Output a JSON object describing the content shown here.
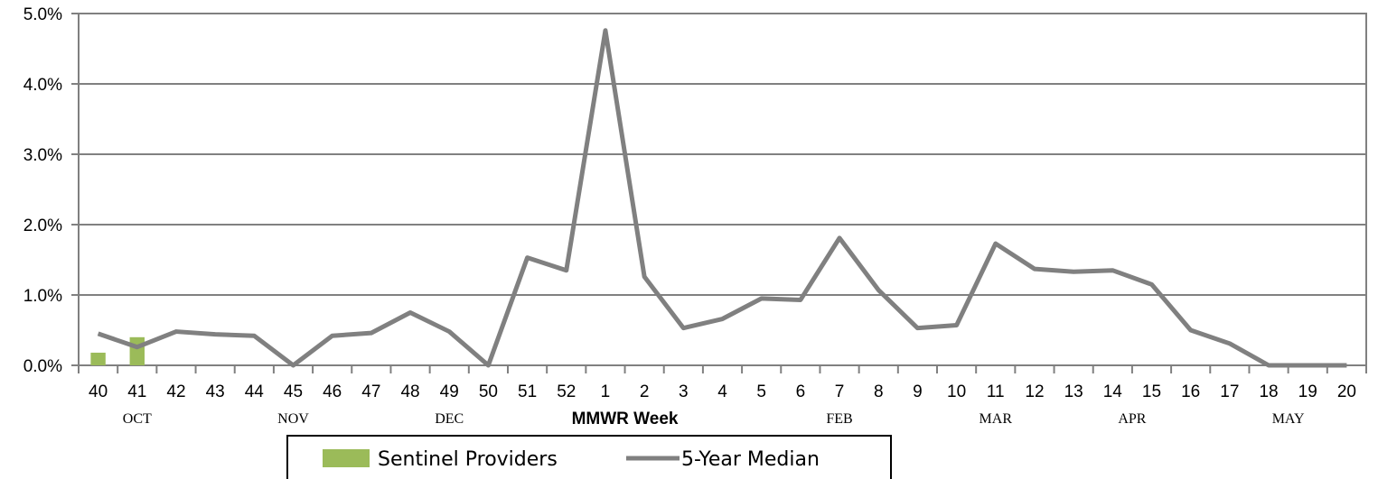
{
  "chart_data": {
    "type": "bar",
    "xlabel": "MMWR Week",
    "ylabel": "",
    "ylim": [
      0,
      5
    ],
    "y_ticks": [
      "0.0%",
      "1.0%",
      "2.0%",
      "3.0%",
      "4.0%",
      "5.0%"
    ],
    "grid": "horizontal",
    "legend_placement": "bottom",
    "categories": [
      "40",
      "41",
      "42",
      "43",
      "44",
      "45",
      "46",
      "47",
      "48",
      "49",
      "50",
      "51",
      "52",
      "1",
      "2",
      "3",
      "4",
      "5",
      "6",
      "7",
      "8",
      "9",
      "10",
      "11",
      "12",
      "13",
      "14",
      "15",
      "16",
      "17",
      "18",
      "19",
      "20"
    ],
    "months": [
      {
        "label": "OCT",
        "at_week": "41"
      },
      {
        "label": "NOV",
        "at_week": "45"
      },
      {
        "label": "DEC",
        "at_week": "49"
      },
      {
        "label": "FEB",
        "at_week": "7"
      },
      {
        "label": "MAR",
        "at_week": "11"
      },
      {
        "label": "APR",
        "at_week": "14.5"
      },
      {
        "label": "MAY",
        "at_week": "18.5"
      }
    ],
    "series": [
      {
        "name": "Sentinel Providers",
        "type": "bar",
        "color": "#9bbb59",
        "values": [
          0.18,
          0.4,
          null,
          null,
          null,
          null,
          null,
          null,
          null,
          null,
          null,
          null,
          null,
          null,
          null,
          null,
          null,
          null,
          null,
          null,
          null,
          null,
          null,
          null,
          null,
          null,
          null,
          null,
          null,
          null,
          null,
          null,
          null
        ]
      },
      {
        "name": "5-Year Median",
        "type": "line",
        "color": "#808080",
        "values": [
          0.45,
          0.26,
          0.48,
          0.44,
          0.42,
          0.0,
          0.42,
          0.46,
          0.75,
          0.48,
          0.0,
          1.53,
          1.35,
          4.76,
          1.26,
          0.53,
          0.66,
          0.95,
          0.93,
          1.81,
          1.07,
          0.53,
          0.57,
          1.73,
          1.37,
          1.33,
          1.35,
          1.15,
          0.5,
          0.31,
          0.0,
          0.0,
          0.0
        ]
      }
    ]
  }
}
